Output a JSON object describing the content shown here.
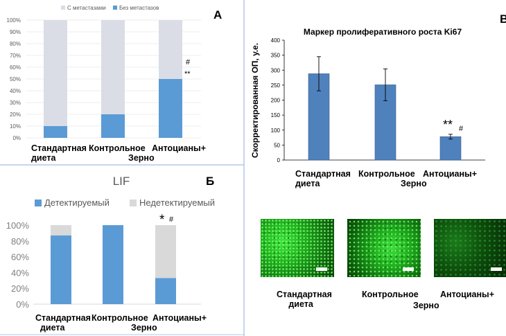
{
  "panels": {
    "a": {
      "label": "А",
      "legend": [
        "С метастазами",
        "Без метастазов"
      ],
      "ticks": [
        "0%",
        "10%",
        "20%",
        "30%",
        "40%",
        "50%",
        "60%",
        "70%",
        "80%",
        "90%",
        "100%"
      ],
      "categories": [
        [
          "Стандартная",
          "диета"
        ],
        [
          "Контрольное",
          ""
        ],
        [
          "Антоцианы+",
          ""
        ]
      ],
      "shared_label": "Зерно",
      "annotations": [
        "#",
        "**"
      ]
    },
    "b": {
      "label": "Б",
      "title": "LIF",
      "legend": [
        "Детектируемый",
        "Недетектируемый"
      ],
      "ticks": [
        "0%",
        "20%",
        "40%",
        "60%",
        "80%",
        "100%"
      ],
      "categories": [
        [
          "Стандартная",
          "диета"
        ],
        [
          "Контрольное",
          ""
        ],
        [
          "Антоцианы+",
          ""
        ]
      ],
      "shared_label": "Зерно",
      "annotations": [
        "*",
        "#"
      ]
    },
    "c": {
      "label": "В",
      "title": "Маркер пролиферативного роста Ki67",
      "ylabel": "Скорректированная ОП, у.е.",
      "ticks": [
        "0",
        "50",
        "100",
        "150",
        "200",
        "250",
        "300",
        "350",
        "400"
      ],
      "categories": [
        [
          "Стандартная",
          "диета"
        ],
        [
          "Контрольное",
          ""
        ],
        [
          "Антоцианы+",
          ""
        ]
      ],
      "shared_label": "Зерно",
      "annotations": [
        "**",
        "#"
      ],
      "micro_labels": [
        [
          "Стандартная",
          "диета"
        ],
        [
          "Контрольное",
          ""
        ],
        [
          "Антоцианы+",
          ""
        ]
      ],
      "micro_shared_label": "Зерно"
    }
  },
  "colors": {
    "blue": "#5b9bd5",
    "grey": "#d9d9d9",
    "lightgrey": "#dadde6",
    "kiblue": "#4f81bd",
    "green": "#2fd42f"
  },
  "chart_data": [
    {
      "type": "bar",
      "stacked": true,
      "title": "",
      "categories": [
        "Стандартная диета",
        "Контрольное",
        "Антоцианы+ Зерно"
      ],
      "series": [
        {
          "name": "Без метастазов",
          "values": [
            10,
            20,
            50
          ]
        },
        {
          "name": "С метастазами",
          "values": [
            90,
            80,
            50
          ]
        }
      ],
      "ylim": [
        0,
        100
      ],
      "legend": "top"
    },
    {
      "type": "bar",
      "stacked": true,
      "title": "LIF",
      "categories": [
        "Стандартная диета",
        "Контрольное",
        "Антоцианы+ Зерно"
      ],
      "series": [
        {
          "name": "Детектируемый",
          "values": [
            87,
            100,
            33
          ]
        },
        {
          "name": "Недетектируемый",
          "values": [
            13,
            0,
            67
          ]
        }
      ],
      "ylim": [
        0,
        100
      ],
      "legend": "top"
    },
    {
      "type": "bar",
      "title": "Маркер пролиферативного роста Ki67",
      "ylabel": "Скорректированная ОП, у.е.",
      "categories": [
        "Стандартная диета",
        "Контрольное",
        "Антоцианы+ Зерно"
      ],
      "values": [
        288,
        251,
        78
      ],
      "errors": [
        57,
        53,
        8
      ],
      "ylim": [
        0,
        400
      ]
    }
  ]
}
